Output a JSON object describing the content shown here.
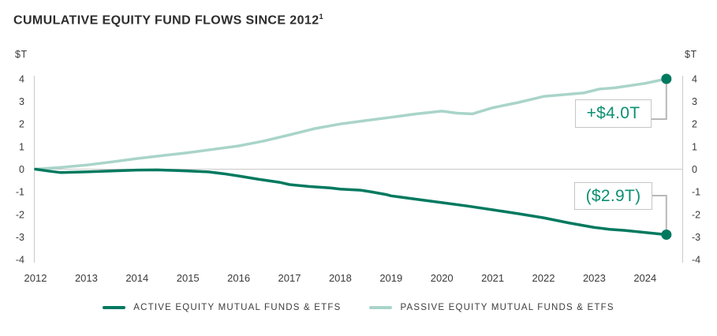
{
  "header": {
    "title": "CUMULATIVE EQUITY FUND FLOWS SINCE 2012",
    "footnote_marker": "1"
  },
  "axes": {
    "y_unit_left": "$T",
    "y_unit_right": "$T"
  },
  "callouts": {
    "passive_total": "+$4.0T",
    "active_total": "($2.9T)"
  },
  "legend": {
    "items": [
      {
        "label": "ACTIVE EQUITY MUTUAL FUNDS & ETFS",
        "color": "#00795f"
      },
      {
        "label": "PASSIVE EQUITY MUTUAL FUNDS & ETFS",
        "color": "#a9d4c9"
      }
    ]
  },
  "chart_data": {
    "type": "line",
    "title": "CUMULATIVE EQUITY FUND FLOWS SINCE 2012¹",
    "xlabel": "",
    "ylabel": "$T",
    "ylim": [
      -4,
      4
    ],
    "y_ticks": [
      4,
      3,
      2,
      1,
      0,
      -1,
      -2,
      -3,
      -4
    ],
    "x_tick_labels": [
      "2012",
      "2013",
      "2014",
      "2015",
      "2016",
      "2017",
      "2018",
      "2019",
      "2020",
      "2021",
      "2022",
      "2023",
      "2024"
    ],
    "xlim": [
      2012,
      2024.6
    ],
    "grid": "zero-baseline-only",
    "legend_position": "bottom-center",
    "axis_color": "#c9c9c9",
    "connector_color": "#b8b8b8",
    "end_dot_color": "#00795f",
    "series": [
      {
        "name": "ACTIVE EQUITY MUTUAL FUNDS & ETFS",
        "color": "#00795f",
        "end_value": -2.9,
        "end_value_label": "($2.9T)",
        "points": [
          [
            2012,
            0.0
          ],
          [
            2012.25,
            -0.08
          ],
          [
            2012.5,
            -0.15
          ],
          [
            2013,
            -0.12
          ],
          [
            2013.5,
            -0.08
          ],
          [
            2014,
            -0.04
          ],
          [
            2014.4,
            -0.03
          ],
          [
            2014.8,
            -0.06
          ],
          [
            2015,
            -0.08
          ],
          [
            2015.4,
            -0.12
          ],
          [
            2015.7,
            -0.2
          ],
          [
            2016,
            -0.3
          ],
          [
            2016.4,
            -0.45
          ],
          [
            2016.8,
            -0.58
          ],
          [
            2017,
            -0.68
          ],
          [
            2017.4,
            -0.77
          ],
          [
            2017.8,
            -0.83
          ],
          [
            2018,
            -0.88
          ],
          [
            2018.4,
            -0.93
          ],
          [
            2018.6,
            -1.0
          ],
          [
            2018.9,
            -1.12
          ],
          [
            2019,
            -1.18
          ],
          [
            2019.5,
            -1.33
          ],
          [
            2020,
            -1.48
          ],
          [
            2020.5,
            -1.63
          ],
          [
            2021,
            -1.8
          ],
          [
            2021.5,
            -1.97
          ],
          [
            2022,
            -2.15
          ],
          [
            2022.5,
            -2.38
          ],
          [
            2023,
            -2.58
          ],
          [
            2023.3,
            -2.66
          ],
          [
            2023.6,
            -2.71
          ],
          [
            2024,
            -2.8
          ],
          [
            2024.42,
            -2.9
          ]
        ]
      },
      {
        "name": "PASSIVE EQUITY MUTUAL FUNDS & ETFS",
        "color": "#a9d4c9",
        "end_value": 4.0,
        "end_value_label": "+$4.0T",
        "points": [
          [
            2012,
            0.0
          ],
          [
            2012.5,
            0.08
          ],
          [
            2013,
            0.18
          ],
          [
            2013.5,
            0.32
          ],
          [
            2014,
            0.47
          ],
          [
            2014.5,
            0.6
          ],
          [
            2015,
            0.73
          ],
          [
            2015.5,
            0.88
          ],
          [
            2016,
            1.03
          ],
          [
            2016.5,
            1.25
          ],
          [
            2017,
            1.52
          ],
          [
            2017.5,
            1.8
          ],
          [
            2018,
            2.0
          ],
          [
            2018.5,
            2.15
          ],
          [
            2019,
            2.3
          ],
          [
            2019.5,
            2.45
          ],
          [
            2020,
            2.57
          ],
          [
            2020.3,
            2.48
          ],
          [
            2020.6,
            2.45
          ],
          [
            2021,
            2.72
          ],
          [
            2021.5,
            2.95
          ],
          [
            2022,
            3.22
          ],
          [
            2022.4,
            3.3
          ],
          [
            2022.8,
            3.38
          ],
          [
            2023.1,
            3.55
          ],
          [
            2023.4,
            3.6
          ],
          [
            2024,
            3.8
          ],
          [
            2024.42,
            4.0
          ]
        ]
      }
    ]
  }
}
